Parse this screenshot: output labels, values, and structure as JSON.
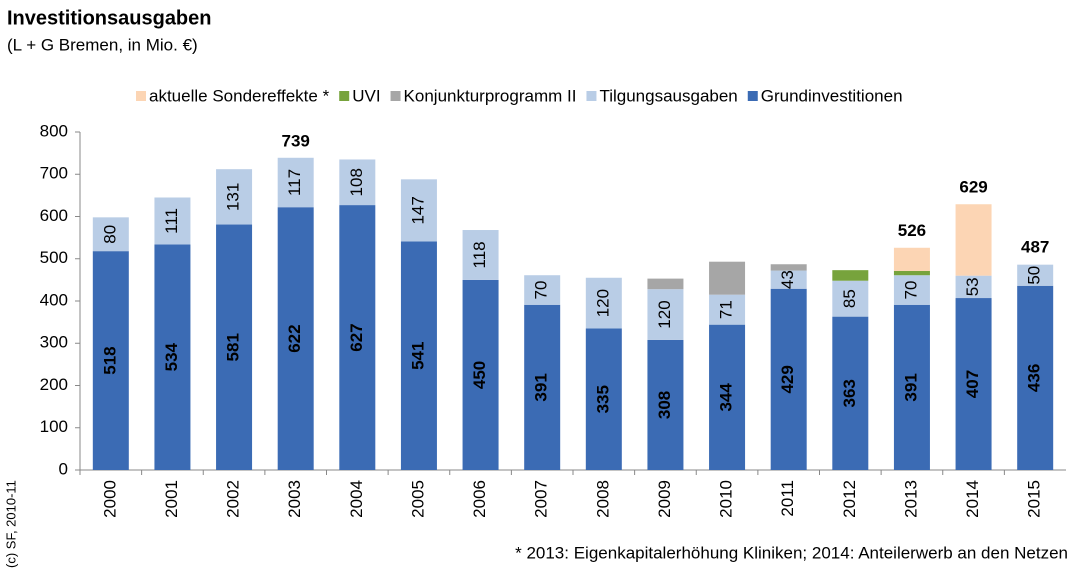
{
  "chart_data": {
    "type": "stacked_bar",
    "title": "Investitionsausgaben",
    "subtitle": "(L + G Bremen, in Mio. €)",
    "source": "(c) SF, 2010-11",
    "footnote": "* 2013: Eigenkapitalerhöhung Kliniken; 2014: Anteilerwerb an den Netzen",
    "categories": [
      "2000",
      "2001",
      "2002",
      "2003",
      "2004",
      "2005",
      "2006",
      "2007",
      "2008",
      "2009",
      "2010",
      "2011",
      "2012",
      "2013",
      "2014",
      "2015"
    ],
    "series": [
      {
        "name": "Grundinvestitionen",
        "color": "#3b6bb4",
        "show_labels": true,
        "label_bold": true,
        "values": [
          518,
          534,
          581,
          622,
          627,
          541,
          450,
          391,
          335,
          308,
          344,
          429,
          363,
          391,
          407,
          436
        ]
      },
      {
        "name": "Tilgungsausgaben",
        "color": "#b9cde6",
        "show_labels": true,
        "label_bold": false,
        "values": [
          80,
          111,
          131,
          117,
          108,
          147,
          118,
          70,
          120,
          120,
          71,
          43,
          85,
          70,
          53,
          50
        ]
      },
      {
        "name": "Konjunkturprogramm II",
        "color": "#a6a6a6",
        "show_labels": false,
        "values": [
          null,
          null,
          null,
          null,
          null,
          null,
          null,
          null,
          null,
          25,
          78,
          15,
          null,
          null,
          null,
          null
        ]
      },
      {
        "name": "UVI",
        "color": "#77a33c",
        "show_labels": false,
        "values": [
          null,
          null,
          null,
          null,
          null,
          null,
          null,
          null,
          null,
          null,
          null,
          null,
          25,
          10,
          null,
          null
        ]
      },
      {
        "name": "aktuelle Sondereffekte *",
        "color": "#fcd5b4",
        "show_labels": false,
        "values": [
          null,
          null,
          null,
          null,
          null,
          null,
          null,
          null,
          null,
          null,
          null,
          null,
          null,
          55,
          169,
          null
        ]
      }
    ],
    "totals": [
      null,
      null,
      null,
      739,
      null,
      null,
      null,
      null,
      null,
      null,
      null,
      null,
      null,
      526,
      629,
      487
    ],
    "ylim": [
      0,
      800
    ],
    "yticks": [
      0,
      100,
      200,
      300,
      400,
      500,
      600,
      700,
      800
    ],
    "grid": false,
    "legend": "top"
  }
}
